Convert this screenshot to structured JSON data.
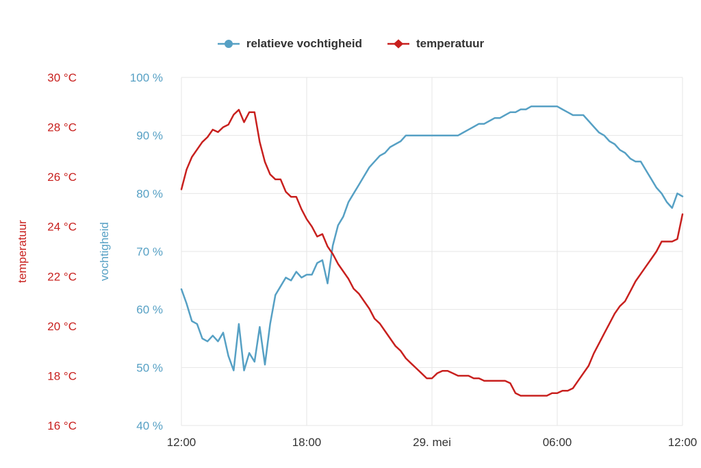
{
  "chart_data": {
    "type": "line",
    "title": "",
    "grid": true,
    "grid_color": "#e6e6e6",
    "legend_position": "top",
    "step_hours": 0.25,
    "x_axis": {
      "span_hours": 24,
      "tick_hours": [
        0,
        6,
        12,
        18,
        24
      ],
      "tick_labels": [
        "12:00",
        "18:00",
        "29. mei",
        "06:00",
        "12:00"
      ],
      "label_color": "#333333"
    },
    "humidity_axis": {
      "title": "vochtigheid",
      "min": 40,
      "max": 100,
      "tick_values": [
        40,
        50,
        60,
        70,
        80,
        90,
        100
      ],
      "tick_suffix": " %",
      "color": "#56a0c4"
    },
    "temperature_axis": {
      "title": "temperatuur",
      "min": 16,
      "max": 30,
      "tick_values": [
        16,
        18,
        20,
        22,
        24,
        26,
        28,
        30
      ],
      "tick_suffix": " °C",
      "color": "#c8201e"
    },
    "series": [
      {
        "name": "relatieve vochtigheid",
        "axis": "humidity",
        "color": "#56a0c4",
        "marker": "circle",
        "values": [
          63.5,
          61,
          58,
          57.5,
          55,
          54.5,
          55.5,
          54.5,
          56,
          52,
          49.5,
          57.5,
          49.5,
          52.5,
          51,
          57,
          50.5,
          57.5,
          62.5,
          64,
          65.5,
          65,
          66.5,
          65.5,
          66,
          66,
          68,
          68.5,
          64.5,
          71,
          74.5,
          76,
          78.5,
          80,
          81.5,
          83,
          84.5,
          85.5,
          86.5,
          87,
          88,
          88.5,
          89,
          90,
          90,
          90,
          90,
          90,
          90,
          90,
          90,
          90,
          90,
          90,
          90.5,
          91,
          91.5,
          92,
          92,
          92.5,
          93,
          93,
          93.5,
          94,
          94,
          94.5,
          94.5,
          95,
          95,
          95,
          95,
          95,
          95,
          94.5,
          94,
          93.5,
          93.5,
          93.5,
          92.5,
          91.5,
          90.5,
          90,
          89,
          88.5,
          87.5,
          87,
          86,
          85.5,
          85.5,
          84,
          82.5,
          81,
          80,
          78.5,
          77.5,
          80,
          79.5
        ]
      },
      {
        "name": "temperatuur",
        "axis": "temperature",
        "color": "#c8201e",
        "marker": "diamond",
        "values": [
          25.5,
          26.3,
          26.8,
          27.1,
          27.4,
          27.6,
          27.9,
          27.8,
          28,
          28.1,
          28.5,
          28.7,
          28.2,
          28.6,
          28.6,
          27.4,
          26.6,
          26.1,
          25.9,
          25.9,
          25.4,
          25.2,
          25.2,
          24.7,
          24.3,
          24,
          23.6,
          23.7,
          23.2,
          22.9,
          22.5,
          22.2,
          21.9,
          21.5,
          21.3,
          21,
          20.7,
          20.3,
          20.1,
          19.8,
          19.5,
          19.2,
          19,
          18.7,
          18.5,
          18.3,
          18.1,
          17.9,
          17.9,
          18.1,
          18.2,
          18.2,
          18.1,
          18,
          18,
          18,
          17.9,
          17.9,
          17.8,
          17.8,
          17.8,
          17.8,
          17.8,
          17.7,
          17.3,
          17.2,
          17.2,
          17.2,
          17.2,
          17.2,
          17.2,
          17.3,
          17.3,
          17.4,
          17.4,
          17.5,
          17.8,
          18.1,
          18.4,
          18.9,
          19.3,
          19.7,
          20.1,
          20.5,
          20.8,
          21,
          21.4,
          21.8,
          22.1,
          22.4,
          22.7,
          23,
          23.4,
          23.4,
          23.4,
          23.5,
          24.5
        ]
      }
    ]
  }
}
